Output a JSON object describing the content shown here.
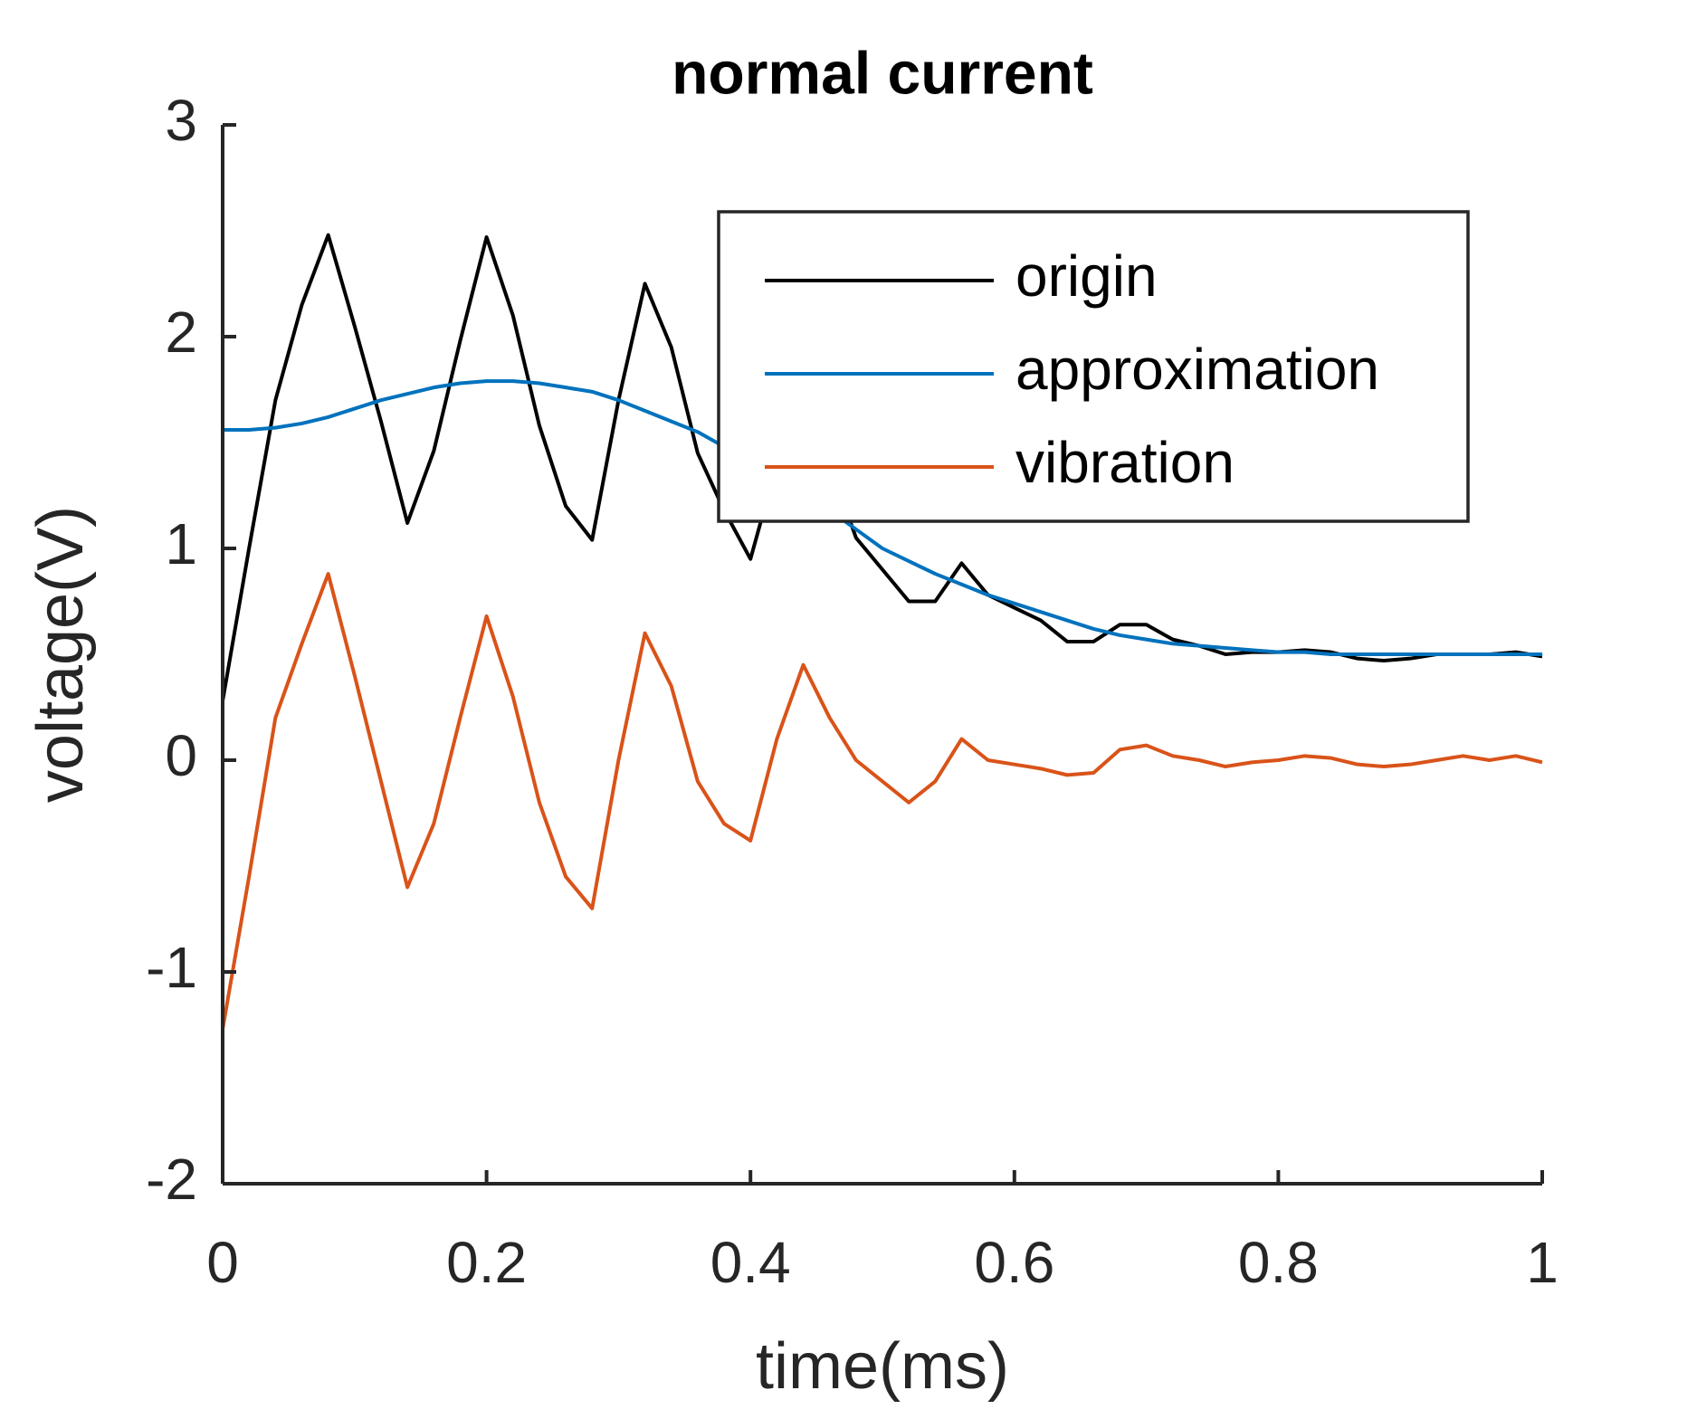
{
  "chart_data": {
    "type": "line",
    "title": "normal current",
    "x_label": "time(ms)",
    "y_label": "voltage(V)",
    "x": [
      0,
      0.02,
      0.04,
      0.06,
      0.08,
      0.1,
      0.12,
      0.14,
      0.16,
      0.18,
      0.2,
      0.22,
      0.24,
      0.26,
      0.28,
      0.3,
      0.32,
      0.34,
      0.36,
      0.38,
      0.4,
      0.42,
      0.44,
      0.46,
      0.48,
      0.5,
      0.52,
      0.54,
      0.56,
      0.58,
      0.6,
      0.62,
      0.64,
      0.66,
      0.68,
      0.7,
      0.72,
      0.74,
      0.76,
      0.78,
      0.8,
      0.82,
      0.84,
      0.86,
      0.88,
      0.9,
      0.92,
      0.94,
      0.96,
      0.98,
      1
    ],
    "series": [
      {
        "name": "origin",
        "color": "#000000",
        "values": [
          0.28,
          1.0,
          1.7,
          2.15,
          2.48,
          2.05,
          1.6,
          1.12,
          1.46,
          1.98,
          2.47,
          2.1,
          1.58,
          1.2,
          1.04,
          1.7,
          2.25,
          1.95,
          1.45,
          1.18,
          0.95,
          1.4,
          1.7,
          1.4,
          1.05,
          0.9,
          0.75,
          0.75,
          0.93,
          0.78,
          0.72,
          0.66,
          0.56,
          0.56,
          0.64,
          0.64,
          0.57,
          0.54,
          0.5,
          0.51,
          0.51,
          0.52,
          0.51,
          0.48,
          0.47,
          0.48,
          0.5,
          0.5,
          0.5,
          0.51,
          0.49
        ]
      },
      {
        "name": "approximation",
        "color": "#0072BD",
        "values": [
          1.56,
          1.56,
          1.57,
          1.59,
          1.62,
          1.66,
          1.7,
          1.73,
          1.76,
          1.78,
          1.79,
          1.79,
          1.78,
          1.76,
          1.74,
          1.7,
          1.65,
          1.6,
          1.55,
          1.48,
          1.36,
          1.3,
          1.24,
          1.18,
          1.09,
          1.0,
          0.94,
          0.88,
          0.83,
          0.78,
          0.74,
          0.7,
          0.66,
          0.62,
          0.59,
          0.57,
          0.55,
          0.54,
          0.53,
          0.52,
          0.51,
          0.51,
          0.5,
          0.5,
          0.5,
          0.5,
          0.5,
          0.5,
          0.5,
          0.5,
          0.5
        ]
      },
      {
        "name": "vibration",
        "color": "#D95319",
        "values": [
          -1.27,
          -0.55,
          0.2,
          0.55,
          0.88,
          0.4,
          -0.1,
          -0.6,
          -0.3,
          0.2,
          0.68,
          0.3,
          -0.2,
          -0.55,
          -0.7,
          0.0,
          0.6,
          0.35,
          -0.1,
          -0.3,
          -0.38,
          0.1,
          0.45,
          0.2,
          0.0,
          -0.1,
          -0.2,
          -0.1,
          0.1,
          0.0,
          -0.02,
          -0.04,
          -0.07,
          -0.06,
          0.05,
          0.07,
          0.02,
          0.0,
          -0.03,
          -0.01,
          0.0,
          0.02,
          0.01,
          -0.02,
          -0.03,
          -0.02,
          0.0,
          0.02,
          0.0,
          0.02,
          -0.01
        ]
      }
    ],
    "xlim": [
      0,
      1
    ],
    "xticks": [
      0,
      0.2,
      0.4,
      0.6,
      0.8,
      1
    ],
    "ylim": [
      -2,
      3
    ],
    "yticks": [
      -2,
      -1,
      0,
      1,
      2,
      3
    ],
    "grid": false,
    "legend": "northeast"
  }
}
